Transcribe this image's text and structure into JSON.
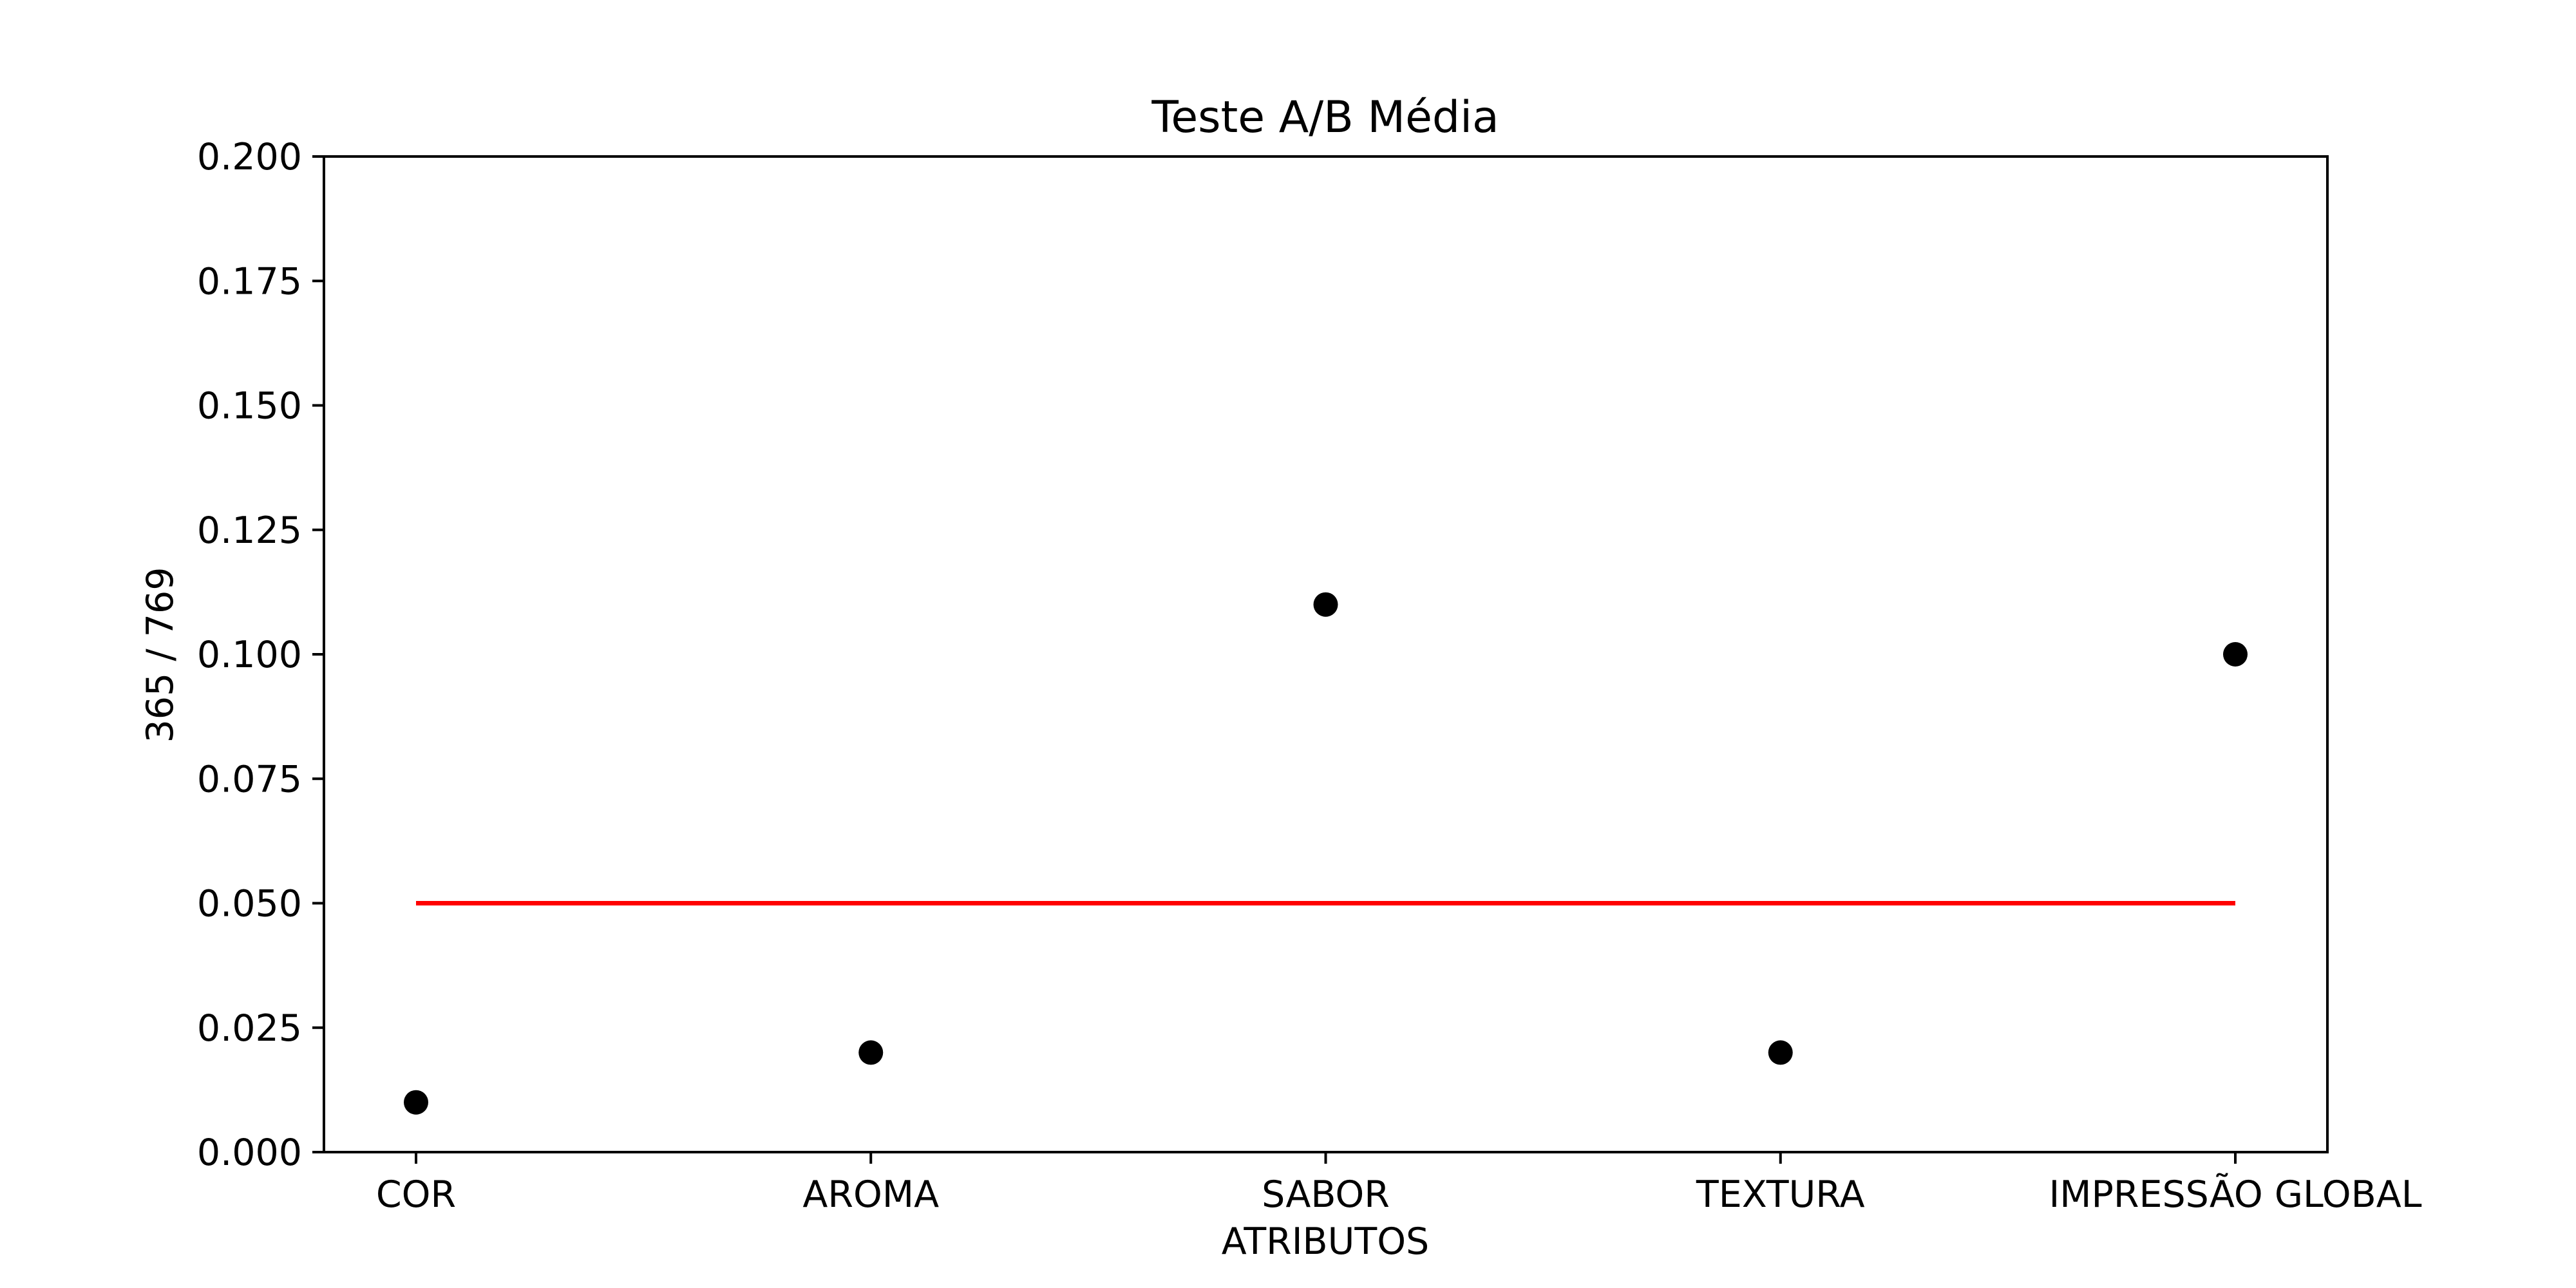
{
  "chart_data": {
    "type": "scatter",
    "title": "Teste A/B Média",
    "xlabel": "ATRIBUTOS",
    "ylabel": "365 / 769",
    "categories": [
      "COR",
      "AROMA",
      "SABOR",
      "TEXTURA",
      "IMPRESSÃO GLOBAL"
    ],
    "series": [
      {
        "values": [
          0.01,
          0.02,
          0.11,
          0.02,
          0.1
        ],
        "color": "#000000",
        "marker": "circle"
      }
    ],
    "reference_line": {
      "y": 0.05,
      "color": "#ff0000",
      "x_from": "COR",
      "x_to": "IMPRESSÃO GLOBAL"
    },
    "ylim": [
      0,
      0.2
    ],
    "yticks": [
      "0.000",
      "0.025",
      "0.050",
      "0.075",
      "0.100",
      "0.125",
      "0.150",
      "0.175",
      "0.200"
    ],
    "grid": false,
    "legend": false
  }
}
